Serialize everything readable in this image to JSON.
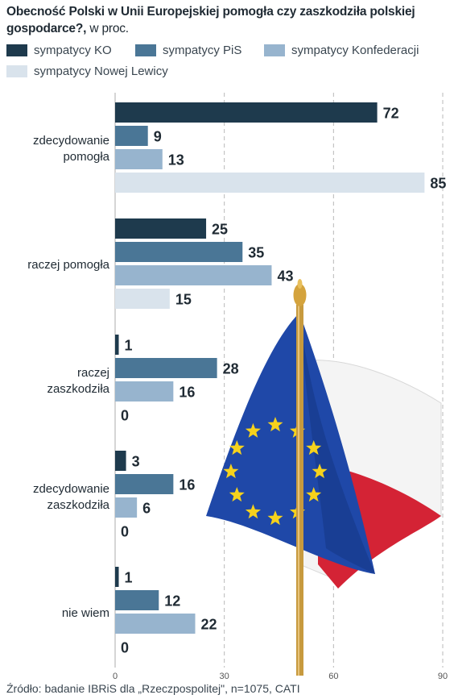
{
  "title": "Obecność Polski w Unii Europejskiej pomogła czy zaszkodziła polskiej gospodarce?,",
  "title_unit": "w proc.",
  "source": "Źródło: badanie IBRiS dla „Rzeczpospolitej\", n=1075, CATI",
  "colors": {
    "KO": "#1e3a4d",
    "PiS": "#4a7696",
    "Konfederacji": "#97b4ce",
    "NowejLewicy": "#d9e3ec",
    "bar_label": "#1f2a33",
    "grid": "#b9b9b9"
  },
  "illustration": "eu-and-poland-flags",
  "chart_data": {
    "type": "bar",
    "orientation": "horizontal",
    "categories": [
      [
        "zdecydowanie",
        "pomogła"
      ],
      [
        "raczej pomogła"
      ],
      [
        "raczej",
        "zaszkodziła"
      ],
      [
        "zdecydowanie",
        "zaszkodziła"
      ],
      [
        "nie wiem"
      ]
    ],
    "series": [
      {
        "name": "sympatycy KO",
        "values": [
          72,
          25,
          1,
          3,
          1
        ]
      },
      {
        "name": "sympatycy PiS",
        "values": [
          9,
          35,
          28,
          16,
          12
        ]
      },
      {
        "name": "sympatycy Konfederacji",
        "values": [
          13,
          43,
          16,
          6,
          22
        ]
      },
      {
        "name": "sympatycy Nowej Lewicy",
        "values": [
          85,
          15,
          0,
          0,
          0
        ]
      }
    ],
    "xlim": [
      0,
      90
    ],
    "xticks": [
      0,
      30,
      60,
      90
    ],
    "grid": true,
    "legend_position": "top"
  }
}
